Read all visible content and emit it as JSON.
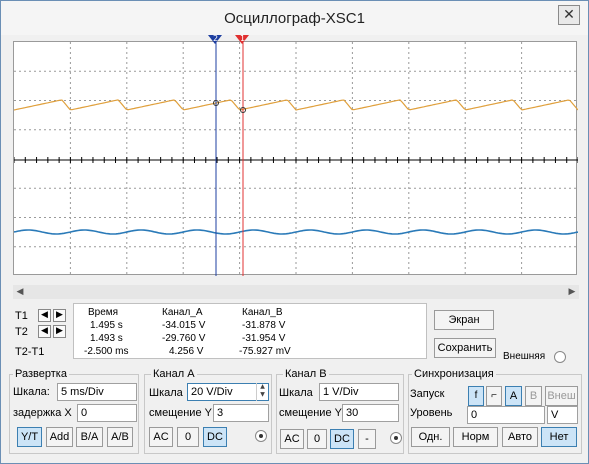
{
  "window": {
    "title": "Осциллограф-XSC1",
    "close_glyph": "✕"
  },
  "scope": {
    "cursor1_label": "1",
    "cursor2_label": "2",
    "colors": {
      "channel_a": "#e0a03c",
      "channel_b": "#2a7ab8",
      "cursor1": "#e03030",
      "cursor2": "#1e3fa0",
      "background": "#ffffff",
      "grid": "#9a9a9a"
    }
  },
  "cursors": {
    "t1": "T1",
    "t2": "T2",
    "t2t1": "T2-T1",
    "left_icon": "arrow-left-icon",
    "right_icon": "arrow-right-icon"
  },
  "readout": {
    "headers": [
      "Время",
      "Канал_A",
      "Канал_B"
    ],
    "rows": [
      [
        "1.495 s",
        "-34.015 V",
        "-31.878 V"
      ],
      [
        "1.493 s",
        "-29.760 V",
        "-31.954 V"
      ],
      [
        "-2.500 ms",
        "4.256 V",
        "-75.927 mV"
      ]
    ]
  },
  "actions": {
    "screen": "Экран",
    "save": "Сохранить",
    "external": "Внешняя"
  },
  "timebase": {
    "title": "Развертка",
    "scale_label": "Шкала:",
    "scale_value": "5 ms/Div",
    "delay_label": "задержка X",
    "delay_value": "0",
    "modes": [
      "Y/T",
      "Add",
      "B/A",
      "A/B"
    ],
    "active_mode": "Y/T"
  },
  "channel_a": {
    "title": "Канал A",
    "scale_label": "Шкала",
    "scale_value": "20  V/Div",
    "offset_label": "смещение Y",
    "offset_value": "3",
    "coupling": [
      "AC",
      "0",
      "DC"
    ],
    "active": "DC"
  },
  "channel_b": {
    "title": "Канал B",
    "scale_label": "Шкала",
    "scale_value": "1  V/Div",
    "offset_label": "смещение Y",
    "offset_value": "30",
    "coupling": [
      "AC",
      "0",
      "DC",
      "-"
    ],
    "active": "DC"
  },
  "trigger": {
    "title": "Синхронизация",
    "edge_label": "Запуск",
    "edge_rising": "f",
    "edge_falling": "⌐",
    "sources": [
      "A",
      "B",
      "Внеш"
    ],
    "active_source": "A",
    "level_label": "Уровень",
    "level_value": "0",
    "level_unit": "V",
    "modes": [
      "Одн.",
      "Норм",
      "Авто",
      "Нет"
    ],
    "active_mode": "Нет"
  }
}
